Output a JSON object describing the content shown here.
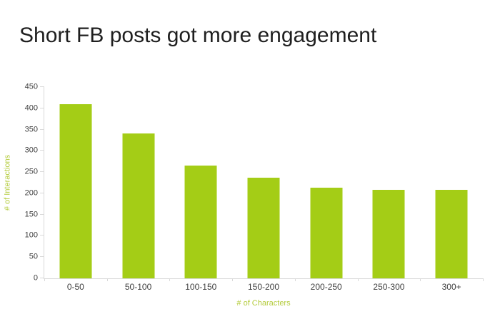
{
  "title": "Short FB posts got more engagement",
  "title_color": "#1f1f1f",
  "chart_data": {
    "type": "bar",
    "title": "Short FB posts got more engagement",
    "categories": [
      "0-50",
      "50-100",
      "100-150",
      "150-200",
      "200-250",
      "250-300",
      "300+"
    ],
    "values": [
      410,
      341,
      266,
      237,
      213,
      209,
      209
    ],
    "xlabel": "# of Characters",
    "ylabel": "# of Interactions",
    "ylim": [
      0,
      450
    ],
    "y_ticks": [
      0,
      50,
      100,
      150,
      200,
      250,
      300,
      350,
      400,
      450
    ],
    "grid": "off",
    "legend": "none",
    "bar_color": "#a4cd16",
    "axis_title_color": "#b5cc3e",
    "tick_label_color": "#404040",
    "axis_line_color": "#d9d9d9"
  }
}
